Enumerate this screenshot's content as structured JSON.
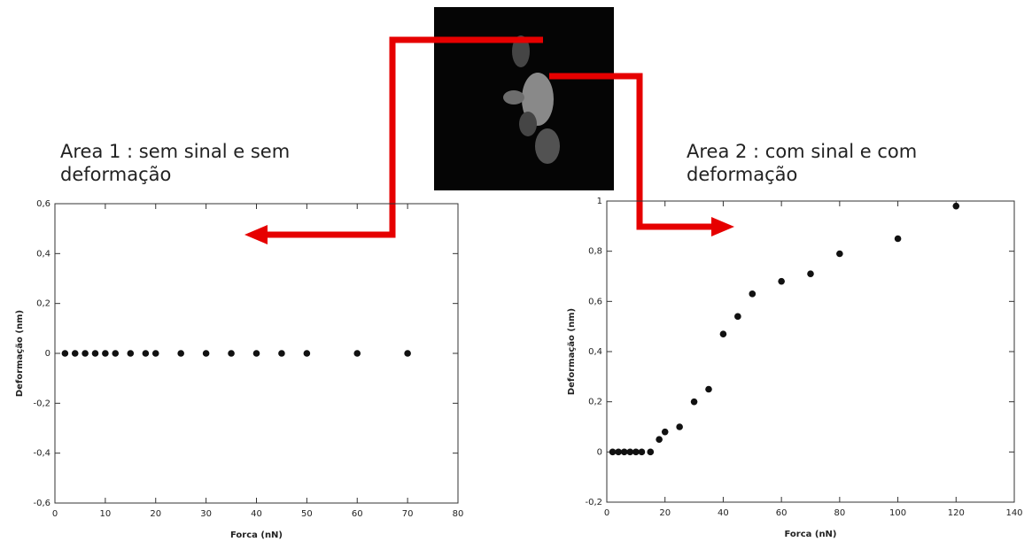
{
  "chart_data": [
    {
      "type": "scatter",
      "title": "Area 1 : sem sinal e sem deformação",
      "xlabel": "Forca (nN)",
      "ylabel": "Deformação (nm)",
      "color": "#111111",
      "x": [
        2,
        4,
        6,
        8,
        10,
        12,
        15,
        18,
        20,
        25,
        30,
        35,
        40,
        45,
        50,
        60,
        70
      ],
      "values": [
        0,
        0,
        0,
        0,
        0,
        0,
        0,
        0,
        0,
        0,
        0,
        0,
        0,
        0,
        0,
        0,
        0
      ],
      "xlim": [
        0,
        80
      ],
      "xticks": [
        0,
        10,
        20,
        30,
        40,
        50,
        60,
        70,
        80
      ],
      "ylim": [
        -0.6,
        0.6
      ],
      "yticks": [
        {
          "value": -0.6,
          "label": "-0,6"
        },
        {
          "value": -0.4,
          "label": "-0,4"
        },
        {
          "value": -0.2,
          "label": "-0,2"
        },
        0,
        {
          "value": 0.2,
          "label": "0,2"
        },
        {
          "value": 0.4,
          "label": "0,4"
        },
        {
          "value": 0.6,
          "label": "0,6"
        }
      ]
    },
    {
      "type": "scatter",
      "title": "Area 2 : com sinal e com deformação",
      "xlabel": "Forca (nN)",
      "ylabel": "Deformação (nm)",
      "color": "#111111",
      "x": [
        2,
        4,
        6,
        8,
        10,
        12,
        15,
        18,
        20,
        25,
        30,
        35,
        40,
        45,
        50,
        60,
        70,
        80,
        100,
        120
      ],
      "values": [
        0,
        0,
        0,
        0,
        0,
        0,
        0,
        0.05,
        0.08,
        0.1,
        0.2,
        0.25,
        0.47,
        0.54,
        0.63,
        0.68,
        0.71,
        0.79,
        0.85,
        0.98
      ],
      "xlim": [
        0,
        140
      ],
      "xticks": [
        0,
        20,
        40,
        60,
        80,
        100,
        120,
        140
      ],
      "ylim": [
        -0.2,
        1
      ],
      "yticks": [
        {
          "value": -0.2,
          "label": "-0,2"
        },
        0,
        {
          "value": 0.2,
          "label": "0,2"
        },
        {
          "value": 0.4,
          "label": "0,4"
        },
        {
          "value": 0.6,
          "label": "0,6"
        },
        {
          "value": 0.8,
          "label": "0,8"
        },
        1
      ]
    }
  ]
}
